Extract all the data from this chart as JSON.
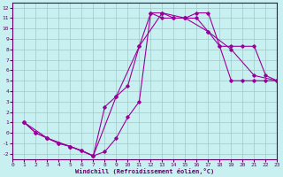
{
  "xlabel": "Windchill (Refroidissement éolien,°C)",
  "bg_color": "#c8f0f0",
  "grid_color": "#a0c8c8",
  "line_color": "#990099",
  "xlim": [
    0,
    23
  ],
  "ylim": [
    -2.5,
    12.5
  ],
  "xticks": [
    0,
    1,
    2,
    3,
    4,
    5,
    6,
    7,
    8,
    9,
    10,
    11,
    12,
    13,
    14,
    15,
    16,
    17,
    18,
    19,
    20,
    21,
    22,
    23
  ],
  "yticks": [
    -2,
    -1,
    0,
    1,
    2,
    3,
    4,
    5,
    6,
    7,
    8,
    9,
    10,
    11,
    12
  ],
  "line1": {
    "x": [
      1,
      2,
      3,
      4,
      5,
      6,
      7,
      8,
      9,
      10,
      11,
      12,
      13,
      14,
      15,
      16,
      17,
      18,
      19,
      20,
      21,
      22,
      23
    ],
    "y": [
      1,
      0,
      -0.5,
      -1.0,
      -1.3,
      -1.7,
      -2.2,
      -1.8,
      -0.5,
      1.5,
      3.0,
      11.5,
      11.0,
      11.0,
      11.0,
      11.0,
      9.7,
      8.3,
      5.0,
      5.0,
      5.0,
      5.0,
      5.0
    ]
  },
  "line2": {
    "x": [
      1,
      3,
      5,
      7,
      9,
      11,
      13,
      15,
      17,
      19,
      21,
      23
    ],
    "y": [
      1,
      -0.5,
      -1.3,
      -2.2,
      3.5,
      8.3,
      11.5,
      11.0,
      9.7,
      8.0,
      5.5,
      5.0
    ]
  },
  "line3": {
    "x": [
      1,
      2,
      3,
      4,
      5,
      6,
      7,
      8,
      9,
      10,
      11,
      12,
      13,
      14,
      15,
      16,
      17,
      18,
      19,
      20,
      21,
      22,
      23
    ],
    "y": [
      1,
      0,
      -0.5,
      -1.0,
      -1.3,
      -1.7,
      -2.2,
      2.5,
      3.5,
      4.5,
      8.3,
      11.5,
      11.5,
      11.0,
      11.0,
      11.5,
      11.5,
      8.3,
      8.3,
      8.3,
      8.3,
      5.5,
      5.0
    ]
  }
}
